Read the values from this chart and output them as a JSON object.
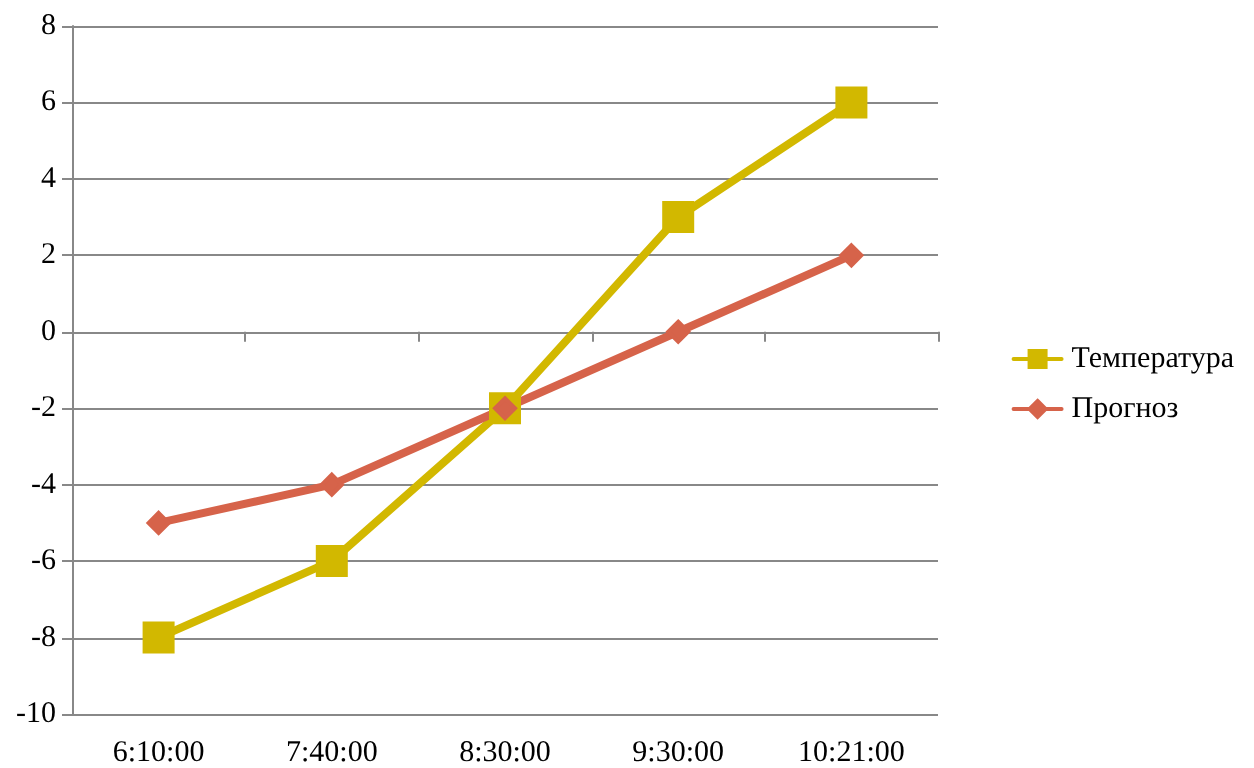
{
  "chart_data": {
    "type": "line",
    "categories": [
      "6:10:00",
      "7:40:00",
      "8:30:00",
      "9:30:00",
      "10:21:00"
    ],
    "series": [
      {
        "name": "Температура",
        "color": "#d2b800",
        "values": [
          -8,
          -6,
          -2,
          3,
          6
        ],
        "marker": "square"
      },
      {
        "name": "Прогноз",
        "color": "#d6634a",
        "values": [
          -5,
          -4,
          -2,
          0,
          2
        ],
        "marker": "diamond"
      }
    ],
    "ylim": [
      -10,
      8
    ],
    "yticks": [
      -10,
      -8,
      -6,
      -4,
      -2,
      0,
      2,
      4,
      6,
      8
    ],
    "grid": "y",
    "legend": "right",
    "line_style": "solid"
  }
}
